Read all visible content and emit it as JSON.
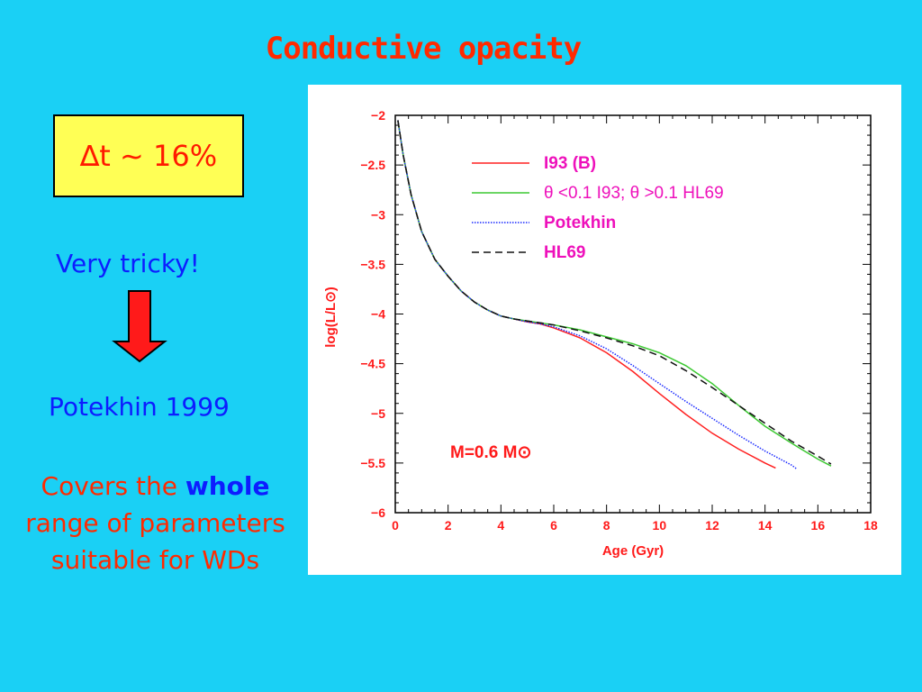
{
  "slide": {
    "title": "Conductive opacity",
    "delta_box": "∆t ~ 16%",
    "tricky": "Very tricky!",
    "reference": "Potekhin 1999",
    "covers_prefix": "Covers the",
    "covers_emph": "whole",
    "covers_rest": "range of parameters suitable for WDs",
    "colors": {
      "background": "#1ad0f5",
      "title": "#ff2a00",
      "accent_blue": "#0d1dff",
      "box": "#ffff55",
      "arrow": "#ff1a1a"
    },
    "arrow_icon": "down-arrow-icon"
  },
  "chart_data": {
    "type": "line",
    "xlabel": "Age (Gyr)",
    "ylabel": "log(L/L⊙)",
    "xlim": [
      0,
      18
    ],
    "ylim": [
      -6,
      -2
    ],
    "xticks": [
      0,
      2,
      4,
      6,
      8,
      10,
      12,
      14,
      16,
      18
    ],
    "yticks": [
      -2,
      -2.5,
      -3,
      -3.5,
      -4,
      -4.5,
      -5,
      -5.5,
      -6
    ],
    "xtick_labels": [
      "0",
      "2",
      "4",
      "6",
      "8",
      "10",
      "12",
      "14",
      "16",
      "18"
    ],
    "ytick_labels": [
      "−2",
      "−2.5",
      "−3",
      "−3.5",
      "−4",
      "−4.5",
      "−5",
      "−5.5",
      "−6"
    ],
    "annotation": "M=0.6 M⊙",
    "legend_position": "top-right",
    "grid": false,
    "series": [
      {
        "name": "I93 (B)",
        "color": "#ff2020",
        "dash": "",
        "x": [
          0.1,
          0.3,
          0.6,
          1.0,
          1.5,
          2.0,
          2.5,
          3.0,
          3.5,
          4.0,
          4.5,
          5.0,
          5.5,
          6.0,
          7.0,
          8.0,
          9.0,
          10.0,
          11.0,
          12.0,
          13.0,
          14.0,
          14.4
        ],
        "y": [
          -2.05,
          -2.4,
          -2.8,
          -3.17,
          -3.45,
          -3.62,
          -3.77,
          -3.88,
          -3.96,
          -4.02,
          -4.05,
          -4.08,
          -4.1,
          -4.14,
          -4.24,
          -4.39,
          -4.58,
          -4.8,
          -5.01,
          -5.2,
          -5.36,
          -5.5,
          -5.55
        ]
      },
      {
        "name": "θ <0.1 I93; θ >0.1 HL69",
        "color": "#3cc832",
        "dash": "",
        "x": [
          0.1,
          0.3,
          0.6,
          1.0,
          1.5,
          2.0,
          2.5,
          3.0,
          3.5,
          4.0,
          4.5,
          5.0,
          5.5,
          6.0,
          7.0,
          8.0,
          9.0,
          10.0,
          11.0,
          12.0,
          13.0,
          14.0,
          15.0,
          16.0,
          16.5
        ],
        "y": [
          -2.05,
          -2.4,
          -2.8,
          -3.17,
          -3.45,
          -3.62,
          -3.77,
          -3.88,
          -3.96,
          -4.02,
          -4.05,
          -4.07,
          -4.09,
          -4.11,
          -4.16,
          -4.23,
          -4.3,
          -4.39,
          -4.52,
          -4.7,
          -4.92,
          -5.13,
          -5.3,
          -5.46,
          -5.53
        ]
      },
      {
        "name": "Potekhin",
        "color": "#1a2aff",
        "dash": "1.5,1.5",
        "x": [
          0.1,
          0.3,
          0.6,
          1.0,
          1.5,
          2.0,
          2.5,
          3.0,
          3.5,
          4.0,
          4.5,
          5.0,
          5.5,
          6.0,
          7.0,
          8.0,
          9.0,
          10.0,
          11.0,
          12.0,
          13.0,
          14.0,
          15.0,
          15.2
        ],
        "y": [
          -2.05,
          -2.4,
          -2.8,
          -3.17,
          -3.45,
          -3.62,
          -3.77,
          -3.88,
          -3.96,
          -4.02,
          -4.05,
          -4.08,
          -4.1,
          -4.13,
          -4.22,
          -4.35,
          -4.52,
          -4.7,
          -4.88,
          -5.05,
          -5.22,
          -5.38,
          -5.52,
          -5.56
        ]
      },
      {
        "name": "HL69",
        "color": "#111111",
        "dash": "8,5",
        "x": [
          0.1,
          0.3,
          0.6,
          1.0,
          1.5,
          2.0,
          2.5,
          3.0,
          3.5,
          4.0,
          4.5,
          5.0,
          5.5,
          6.0,
          7.0,
          8.0,
          9.0,
          10.0,
          11.0,
          12.0,
          13.0,
          14.0,
          15.0,
          16.0,
          16.5
        ],
        "y": [
          -2.05,
          -2.4,
          -2.8,
          -3.17,
          -3.45,
          -3.62,
          -3.77,
          -3.88,
          -3.96,
          -4.02,
          -4.05,
          -4.07,
          -4.09,
          -4.11,
          -4.17,
          -4.24,
          -4.32,
          -4.42,
          -4.57,
          -4.74,
          -4.92,
          -5.1,
          -5.28,
          -5.43,
          -5.51
        ]
      }
    ]
  }
}
